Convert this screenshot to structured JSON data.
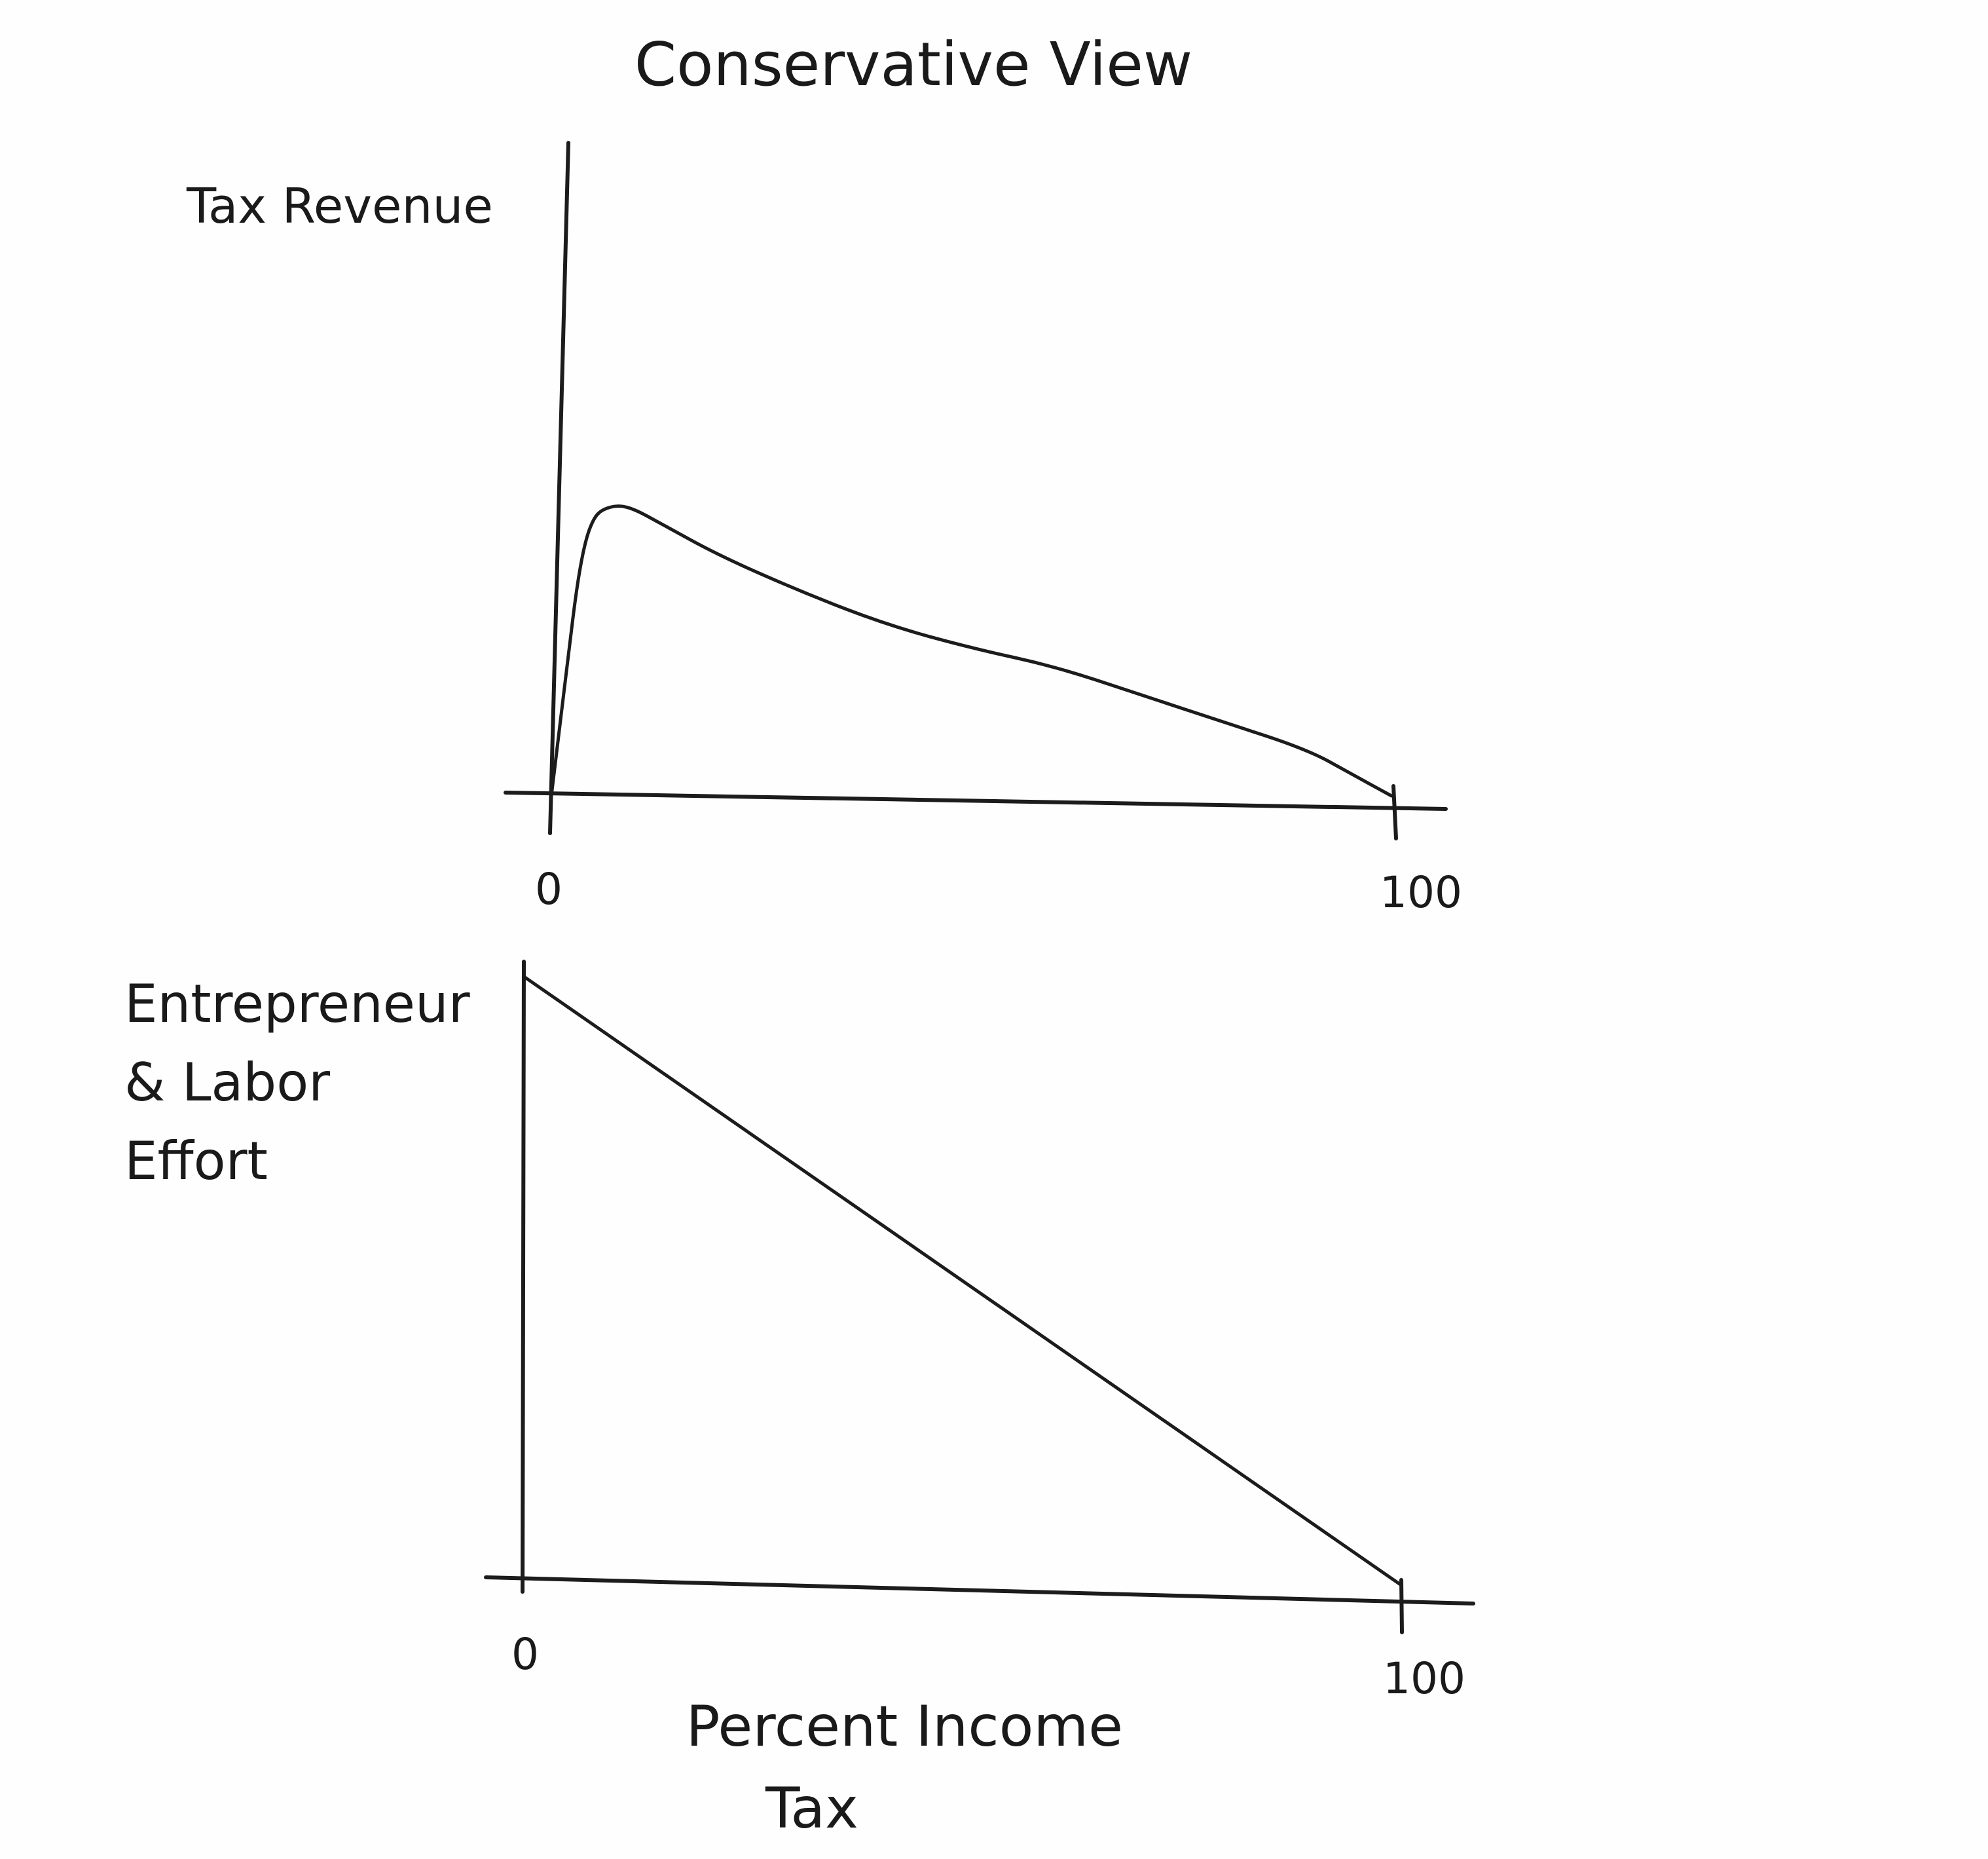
{
  "title": "Conservative View",
  "colors": {
    "ink": "#1c1c1c",
    "paper": "#fefefe"
  },
  "chart_data": [
    {
      "type": "line",
      "title": "",
      "ylabel": "Tax Revenue",
      "xlabel": "",
      "tick_labels": [
        "0",
        "100"
      ],
      "xlim": [
        0,
        100
      ],
      "ylim": [
        0,
        100
      ],
      "grid": false,
      "series": [
        {
          "x": [
            0,
            1,
            2,
            3,
            4,
            5,
            6,
            8,
            10,
            13,
            20,
            30,
            40,
            50,
            60,
            70,
            80,
            90,
            95,
            100
          ],
          "y": [
            0,
            15,
            30,
            45,
            55,
            60,
            62,
            63,
            62,
            59,
            52,
            44,
            37,
            32,
            28,
            22,
            16,
            10,
            5,
            0
          ]
        }
      ]
    },
    {
      "type": "line",
      "title": "",
      "ylabel": "Entrepreneur & Labor Effort",
      "xlabel": "Percent Income Tax",
      "tick_labels": [
        "0",
        "100"
      ],
      "xlim": [
        0,
        100
      ],
      "ylim": [
        0,
        100
      ],
      "grid": false,
      "series": [
        {
          "x": [
            0,
            100
          ],
          "y": [
            92,
            0
          ]
        }
      ]
    }
  ]
}
